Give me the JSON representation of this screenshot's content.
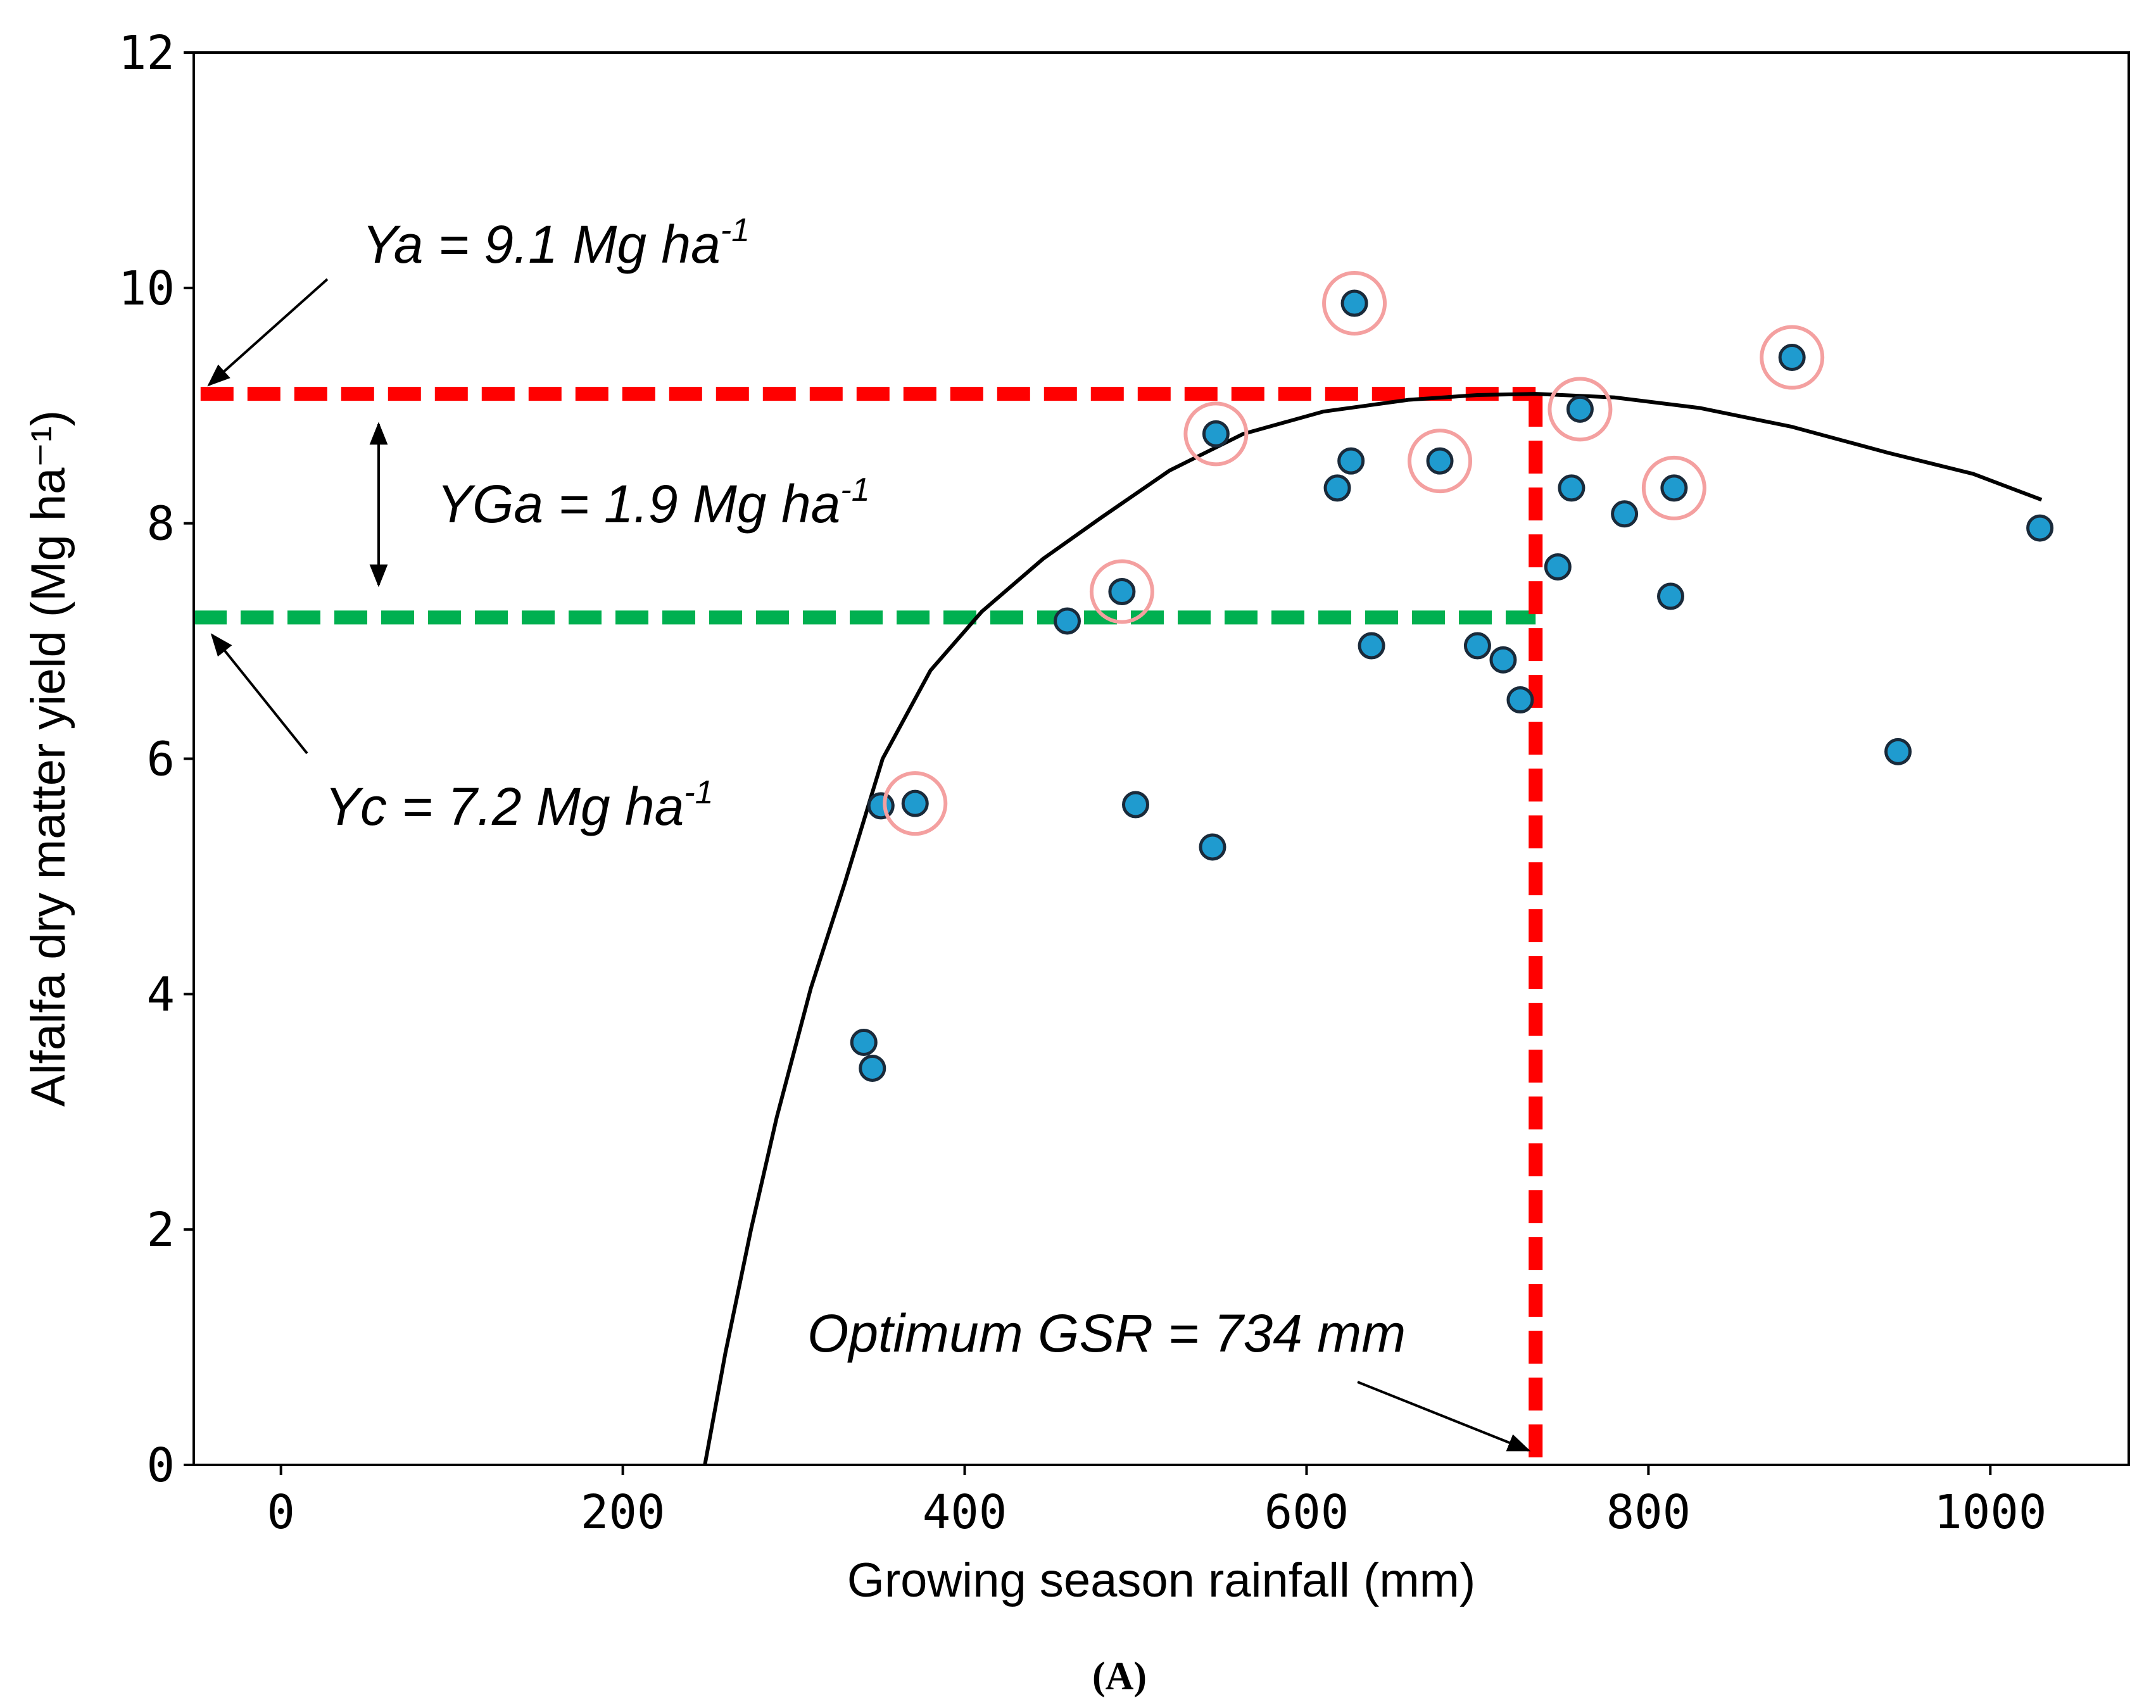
{
  "chart_data": {
    "type": "scatter",
    "xlabel": "Growing season rainfall (mm)",
    "ylabel": "Alfalfa dry matter yield (Mg ha⁻¹)",
    "xlim": [
      -51,
      1081
    ],
    "ylim": [
      0,
      12
    ],
    "xticks": [
      0,
      200,
      400,
      600,
      800,
      1000
    ],
    "yticks": [
      0,
      2,
      4,
      6,
      8,
      10,
      12
    ],
    "grid": false,
    "caption": "(A)",
    "points": [
      {
        "x": 341,
        "y": 3.59,
        "circled": false
      },
      {
        "x": 346,
        "y": 3.37,
        "circled": false
      },
      {
        "x": 351,
        "y": 5.6,
        "circled": false
      },
      {
        "x": 371,
        "y": 5.62,
        "circled": true
      },
      {
        "x": 460,
        "y": 7.17,
        "circled": false
      },
      {
        "x": 492,
        "y": 7.42,
        "circled": true
      },
      {
        "x": 500,
        "y": 5.61,
        "circled": false
      },
      {
        "x": 545,
        "y": 5.25,
        "circled": false
      },
      {
        "x": 547,
        "y": 8.76,
        "circled": true
      },
      {
        "x": 618,
        "y": 8.3,
        "circled": false
      },
      {
        "x": 626,
        "y": 8.53,
        "circled": false
      },
      {
        "x": 628,
        "y": 9.87,
        "circled": true
      },
      {
        "x": 638,
        "y": 6.96,
        "circled": false
      },
      {
        "x": 678,
        "y": 8.53,
        "circled": true
      },
      {
        "x": 700,
        "y": 6.96,
        "circled": false
      },
      {
        "x": 715,
        "y": 6.84,
        "circled": false
      },
      {
        "x": 725,
        "y": 6.5,
        "circled": false
      },
      {
        "x": 747,
        "y": 7.63,
        "circled": false
      },
      {
        "x": 755,
        "y": 8.3,
        "circled": false
      },
      {
        "x": 760,
        "y": 8.97,
        "circled": true
      },
      {
        "x": 786,
        "y": 8.08,
        "circled": false
      },
      {
        "x": 813,
        "y": 7.38,
        "circled": false
      },
      {
        "x": 815,
        "y": 8.3,
        "circled": true
      },
      {
        "x": 884,
        "y": 9.41,
        "circled": true
      },
      {
        "x": 946,
        "y": 6.06,
        "circled": false
      },
      {
        "x": 1029,
        "y": 7.96,
        "circled": false
      }
    ],
    "fit_curve": {
      "x": [
        248,
        260,
        275,
        290,
        310,
        330,
        352,
        380,
        410,
        446,
        480,
        520,
        563,
        610,
        660,
        700,
        734,
        780,
        830,
        884,
        940,
        990,
        1030
      ],
      "y": [
        0,
        0.95,
        2.0,
        2.95,
        4.05,
        4.95,
        6.0,
        6.75,
        7.25,
        7.7,
        8.05,
        8.45,
        8.76,
        8.95,
        9.05,
        9.09,
        9.1,
        9.07,
        8.98,
        8.82,
        8.6,
        8.42,
        8.2
      ]
    },
    "reference_lines": {
      "ya": {
        "value": 9.1,
        "label": "Ya = 9.1 Mg ha",
        "sup": "-1",
        "color": "#ff0000"
      },
      "yc": {
        "value": 7.2,
        "label": "Yc = 7.2 Mg ha",
        "sup": "-1",
        "color": "#00b050"
      },
      "yga": {
        "label": "YGa = 1.9 Mg ha",
        "sup": "-1"
      },
      "optimum": {
        "value": 734,
        "label": "Optimum GSR = 734 mm",
        "color": "#ff0000"
      }
    },
    "colors": {
      "point": "#1f9bcf",
      "circle": "#f4a0a0",
      "curve": "#000000"
    }
  }
}
